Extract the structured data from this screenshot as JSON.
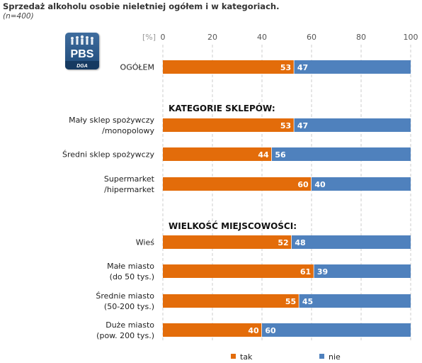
{
  "title": "Sprzedaż alkoholu osobie nieletniej ogółem i w kategoriach.",
  "subtitle": "(n=400)",
  "logo": {
    "text": "PBS",
    "subtext": "DGA"
  },
  "colors": {
    "tak": "#e36c0a",
    "nie": "#4f81bd",
    "grid": "#cccccc"
  },
  "chart_data": {
    "type": "bar",
    "orientation": "horizontal",
    "stacked": true,
    "unit_label": "[%]",
    "xlim": [
      0,
      100
    ],
    "ticks": [
      0,
      20,
      40,
      60,
      80,
      100
    ],
    "grid": true,
    "legend_position": "bottom",
    "section_headers": [
      "KATEGORIE SKLEPÓW:",
      "WIELKOŚĆ MIEJSCOWOŚCI:"
    ],
    "categories": [
      [
        "OGÓŁEM"
      ],
      [
        "Mały sklep spożywczy",
        "/monopolowy"
      ],
      [
        "Średni sklep spożywczy"
      ],
      [
        "Supermarket",
        "/hipermarket"
      ],
      [
        "Wieś"
      ],
      [
        "Małe miasto",
        "(do 50 tys.)"
      ],
      [
        "Średnie miasto",
        "(50-200 tys.)"
      ],
      [
        "Duże miasto",
        "(pow. 200 tys.)"
      ]
    ],
    "series": [
      {
        "name": "tak",
        "values": [
          53,
          53,
          44,
          60,
          52,
          61,
          55,
          40
        ]
      },
      {
        "name": "nie",
        "values": [
          47,
          47,
          56,
          40,
          48,
          39,
          45,
          60
        ]
      }
    ]
  }
}
